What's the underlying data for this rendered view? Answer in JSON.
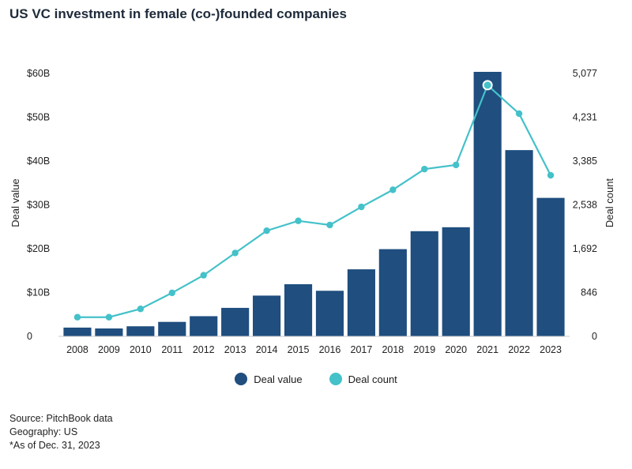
{
  "colors": {
    "bar": "#1f4e7f",
    "line": "#44c1c9",
    "grid": "#dddddd",
    "axis": "#c8c8c8"
  },
  "chart_data": {
    "type": "bar+line",
    "title": "US VC investment in female (co-)founded companies",
    "categories": [
      "2008",
      "2009",
      "2010",
      "2011",
      "2012",
      "2013",
      "2014",
      "2015",
      "2016",
      "2017",
      "2018",
      "2019",
      "2020",
      "2021",
      "2022",
      "2023"
    ],
    "series": [
      {
        "name": "Deal value",
        "type": "bar",
        "axis": "left",
        "values": [
          2.0,
          1.8,
          2.3,
          3.3,
          4.6,
          6.5,
          9.3,
          11.9,
          10.4,
          15.3,
          19.9,
          24.0,
          24.9,
          60.8,
          42.5,
          31.6
        ]
      },
      {
        "name": "Deal count",
        "type": "line",
        "axis": "right",
        "values": [
          370,
          370,
          530,
          840,
          1180,
          1610,
          2040,
          2230,
          2150,
          2500,
          2830,
          3230,
          3310,
          4850,
          4300,
          3110
        ]
      }
    ],
    "y_left": {
      "label": "Deal value",
      "range": [
        0,
        60
      ],
      "ticks": [
        0,
        10,
        20,
        30,
        40,
        50,
        60
      ],
      "tick_labels": [
        "0",
        "$10B",
        "$20B",
        "$30B",
        "$40B",
        "$50B",
        "$60B"
      ]
    },
    "y_right": {
      "label": "Deal count",
      "range": [
        0,
        5077
      ],
      "ticks": [
        0,
        846,
        1692,
        2538,
        3385,
        4231,
        5077
      ],
      "tick_labels": [
        "0",
        "846",
        "1,692",
        "2,538",
        "3,385",
        "4,231",
        "5,077"
      ]
    },
    "highlight_index": 13,
    "legend": [
      "Deal value",
      "Deal count"
    ],
    "legend_position": "bottom-center"
  },
  "footer": {
    "source": "Source: PitchBook data",
    "geography": "Geography: US",
    "asof": "*As of Dec. 31, 2023"
  }
}
